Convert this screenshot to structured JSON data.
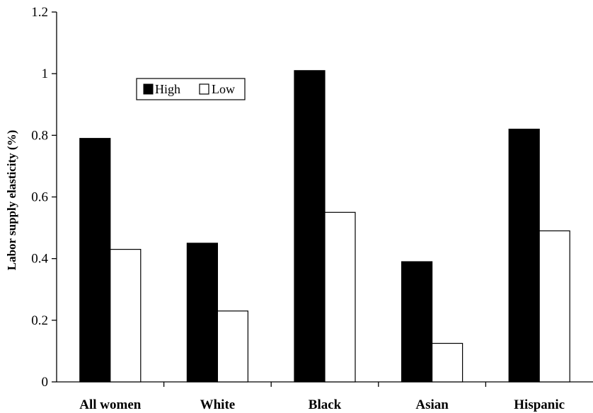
{
  "chart_data": {
    "type": "bar",
    "title": "",
    "xlabel": "",
    "ylabel": "Labor supply elasticity (%)",
    "ylim": [
      0,
      1.2
    ],
    "yticks": [
      0,
      0.2,
      0.4,
      0.6,
      0.8,
      1,
      1.2
    ],
    "ytick_labels": [
      "0",
      "0.2",
      "0.4",
      "0.6",
      "0.8",
      "1",
      "1.2"
    ],
    "categories": [
      "All women",
      "White",
      "Black",
      "Asian",
      "Hispanic"
    ],
    "series": [
      {
        "name": "High",
        "color": "#000000",
        "values": [
          0.79,
          0.45,
          1.01,
          0.39,
          0.82
        ]
      },
      {
        "name": "Low",
        "color": "#ffffff",
        "values": [
          0.43,
          0.23,
          0.55,
          0.125,
          0.49
        ]
      }
    ],
    "grid": false,
    "legend_position": "top-left"
  }
}
